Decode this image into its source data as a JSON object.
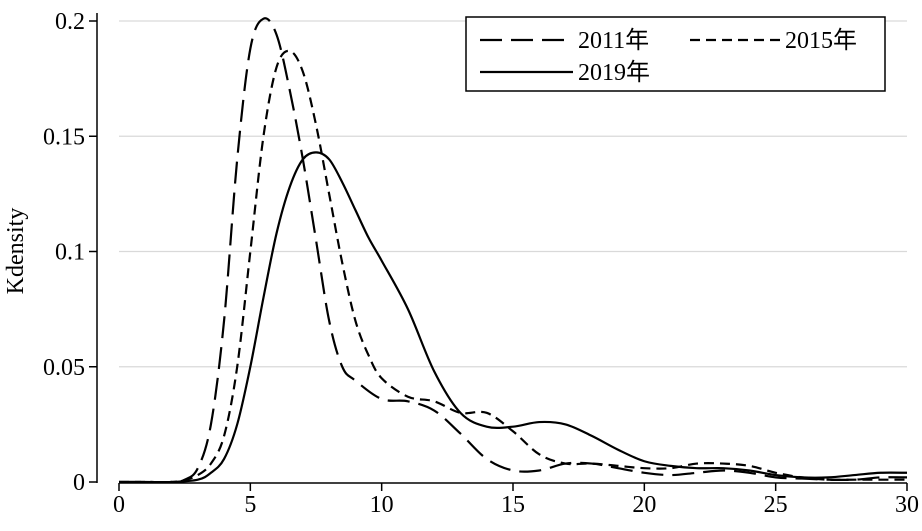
{
  "chart_data": {
    "type": "line",
    "title": "",
    "xlabel": "",
    "ylabel": "Kdensity",
    "xlim": [
      0,
      30
    ],
    "ylim": [
      0,
      0.2
    ],
    "xticks": [
      0,
      5,
      10,
      15,
      20,
      25,
      30
    ],
    "xtick_labels": [
      "0",
      "5",
      "10",
      "15",
      "20",
      "25",
      "30"
    ],
    "yticks": [
      0,
      0.05,
      0.1,
      0.15,
      0.2
    ],
    "ytick_labels": [
      "0",
      "0.05",
      "0.1",
      "0.15",
      "0.2"
    ],
    "grid": "horizontal",
    "legend_position": "top-right",
    "series": [
      {
        "name": "2011年",
        "dash": "longdash",
        "x": [
          0,
          1,
          2,
          2.5,
          3,
          3.5,
          4,
          4.5,
          5,
          5.5,
          6,
          6.5,
          7,
          7.5,
          8,
          8.5,
          9,
          10,
          11,
          12,
          13,
          14,
          15,
          16,
          17,
          18,
          19,
          20,
          21,
          22,
          23,
          24,
          25,
          26,
          27,
          28,
          29,
          30
        ],
        "values": [
          0,
          0,
          0,
          0.001,
          0.006,
          0.025,
          0.07,
          0.14,
          0.188,
          0.201,
          0.194,
          0.17,
          0.14,
          0.105,
          0.07,
          0.05,
          0.044,
          0.036,
          0.035,
          0.031,
          0.021,
          0.01,
          0.005,
          0.005,
          0.008,
          0.008,
          0.006,
          0.004,
          0.003,
          0.004,
          0.005,
          0.004,
          0.002,
          0.0015,
          0.001,
          0.001,
          0.002,
          0.002
        ]
      },
      {
        "name": "2015年",
        "dash": "shortdash",
        "x": [
          0,
          1,
          2,
          2.5,
          3,
          3.5,
          4,
          4.5,
          5,
          5.5,
          6,
          6.5,
          7,
          7.5,
          8,
          8.5,
          9,
          9.5,
          10,
          11,
          12,
          13,
          14,
          15,
          16,
          17,
          18,
          19,
          20,
          21,
          22,
          23,
          24,
          25,
          26,
          27,
          28,
          29,
          30
        ],
        "values": [
          0,
          0,
          0,
          0.0008,
          0.003,
          0.008,
          0.02,
          0.05,
          0.1,
          0.15,
          0.18,
          0.187,
          0.178,
          0.155,
          0.125,
          0.095,
          0.07,
          0.055,
          0.045,
          0.037,
          0.035,
          0.03,
          0.03,
          0.022,
          0.012,
          0.008,
          0.008,
          0.007,
          0.006,
          0.006,
          0.008,
          0.008,
          0.007,
          0.004,
          0.002,
          0.001,
          0.001,
          0.001,
          0.001
        ]
      },
      {
        "name": "2019年",
        "dash": "solid",
        "x": [
          0,
          1,
          2,
          3,
          3.5,
          4,
          4.5,
          5,
          5.5,
          6,
          6.5,
          7,
          7.5,
          8,
          8.5,
          9,
          9.5,
          10,
          11,
          12,
          13,
          14,
          15,
          16,
          17,
          18,
          19,
          20,
          21,
          22,
          23,
          24,
          25,
          26,
          27,
          28,
          29,
          30
        ],
        "values": [
          0,
          0,
          0,
          0.001,
          0.004,
          0.01,
          0.025,
          0.05,
          0.08,
          0.108,
          0.128,
          0.14,
          0.143,
          0.14,
          0.13,
          0.118,
          0.106,
          0.096,
          0.075,
          0.048,
          0.03,
          0.024,
          0.024,
          0.026,
          0.025,
          0.02,
          0.014,
          0.009,
          0.007,
          0.006,
          0.006,
          0.005,
          0.003,
          0.002,
          0.002,
          0.003,
          0.004,
          0.004
        ]
      }
    ]
  }
}
